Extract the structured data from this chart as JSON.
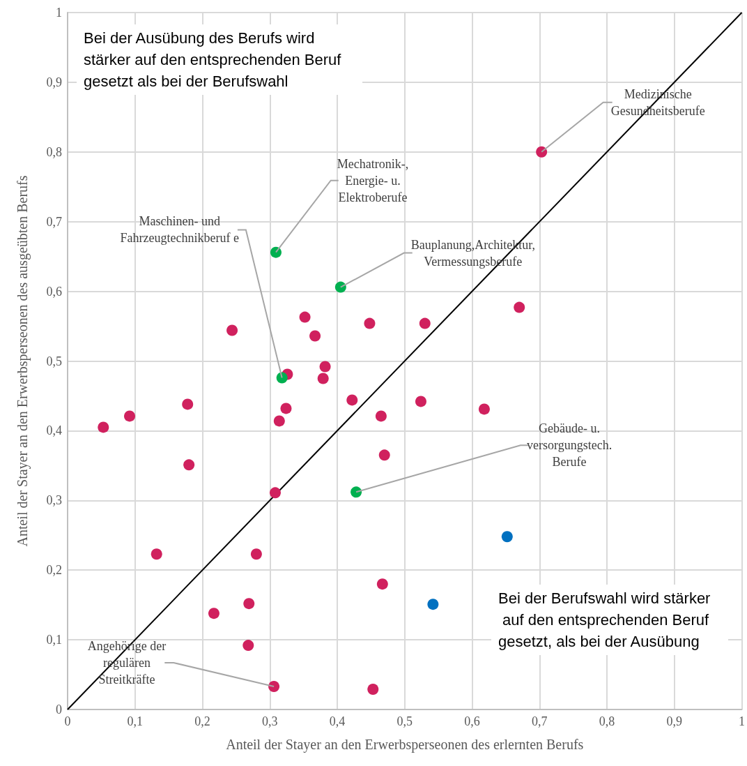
{
  "chart_data": {
    "type": "scatter",
    "xlabel": "Anteil der Stayer an den Erwerbsperseonen des erlernten Berufs",
    "ylabel": "Anteil der Stayer an den Erwerbsperseonen des ausgeübten Berufs",
    "xlim": [
      0,
      1
    ],
    "ylim": [
      0,
      1
    ],
    "xticks": [
      0,
      {
        "value": 0.1,
        "label": "0,1"
      },
      {
        "value": 0.2,
        "label": "0,2"
      },
      {
        "value": 0.3,
        "label": "0,3"
      },
      {
        "value": 0.4,
        "label": "0,4"
      },
      {
        "value": 0.5,
        "label": "0,5"
      },
      {
        "value": 0.6,
        "label": "0,6"
      },
      {
        "value": 0.7,
        "label": "0,7"
      },
      {
        "value": 0.8,
        "label": "0,8"
      },
      {
        "value": 0.9,
        "label": "0,9"
      },
      1
    ],
    "yticks": [
      0,
      {
        "value": 0.1,
        "label": "0,1"
      },
      {
        "value": 0.2,
        "label": "0,2"
      },
      {
        "value": 0.3,
        "label": "0,3"
      },
      {
        "value": 0.4,
        "label": "0,4"
      },
      {
        "value": 0.5,
        "label": "0,5"
      },
      {
        "value": 0.6,
        "label": "0,6"
      },
      {
        "value": 0.7,
        "label": "0,7"
      },
      {
        "value": 0.8,
        "label": "0,8"
      },
      {
        "value": 0.9,
        "label": "0,9"
      },
      1
    ],
    "grid": true,
    "marker": "circle",
    "series": [
      {
        "color": "#d0215e",
        "x": [
          0.053,
          0.092,
          0.132,
          0.178,
          0.18,
          0.217,
          0.244,
          0.268,
          0.269,
          0.28,
          0.306,
          0.308,
          0.314,
          0.324,
          0.326,
          0.352,
          0.367,
          0.379,
          0.382,
          0.422,
          0.448,
          0.453,
          0.465,
          0.467,
          0.47,
          0.524,
          0.53,
          0.618,
          0.67,
          0.703
        ],
        "values": [
          0.405,
          0.421,
          0.223,
          0.438,
          0.351,
          0.138,
          0.544,
          0.092,
          0.152,
          0.223,
          0.033,
          0.311,
          0.414,
          0.432,
          0.481,
          0.563,
          0.536,
          0.475,
          0.492,
          0.444,
          0.554,
          0.029,
          0.421,
          0.18,
          0.365,
          0.442,
          0.554,
          0.431,
          0.577,
          0.8
        ]
      },
      {
        "color": "#0070c0",
        "x": [
          0.542,
          0.652
        ],
        "values": [
          0.151,
          0.248
        ]
      },
      {
        "color": "#00b050",
        "x": [
          0.309,
          0.318,
          0.405,
          0.428
        ],
        "values": [
          0.656,
          0.476,
          0.606,
          0.312
        ]
      },
      {
        "type": "line",
        "color": "#000000",
        "marker": "none",
        "x": [
          0,
          1
        ],
        "values": [
          0,
          1
        ]
      }
    ],
    "annotations": [
      "Bei der Ausübung des Berufs wird stärker auf den entsprechenden Beruf gesetzt als bei der Berufswahl",
      "Bei der Berufswahl wird stärker auf den entsprechenden Beruf gesetzt, als bei der Ausübung",
      {
        "text": "Medizinische Gesundheitsberufe",
        "x": 0.703,
        "y": 0.8
      },
      {
        "text": "Mechatronik-, Energie- u. Elektroberufe",
        "x": 0.309,
        "y": 0.656
      },
      {
        "text": "Maschinen- und Fahrzeugtechnikberuf e",
        "x": 0.318,
        "y": 0.476
      },
      {
        "text": "Bauplanung,Architektur, Vermessungsberufe",
        "x": 0.405,
        "y": 0.606
      },
      {
        "text": "Gebäude- u. versorgungstech. Berufe",
        "x": 0.428,
        "y": 0.312
      },
      {
        "text": "Angehörige der regulären Streitkräfte",
        "x": 0.306,
        "y": 0.033
      }
    ]
  }
}
